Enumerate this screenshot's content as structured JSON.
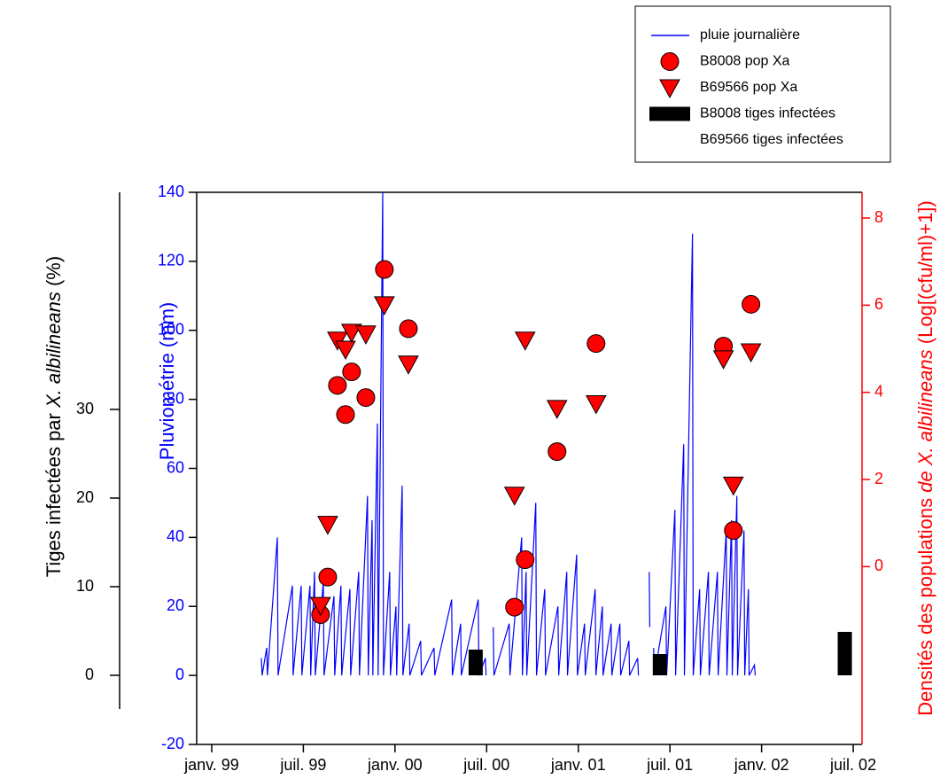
{
  "chart_data": {
    "type": "combo",
    "xlim": [
      1998.918,
      2002.548
    ],
    "xticks": [
      {
        "value": 1999.0,
        "label": "janv. 99"
      },
      {
        "value": 1999.5,
        "label": "juil. 99"
      },
      {
        "value": 2000.0,
        "label": "janv. 00"
      },
      {
        "value": 2000.5,
        "label": "juil. 00"
      },
      {
        "value": 2001.0,
        "label": "janv. 01"
      },
      {
        "value": 2001.5,
        "label": "juil. 01"
      },
      {
        "value": 2002.0,
        "label": "janv. 02"
      },
      {
        "value": 2002.5,
        "label": "juil. 02"
      }
    ],
    "ylim": [
      -20,
      140
    ],
    "yticks": [
      -20,
      0,
      20,
      40,
      60,
      80,
      100,
      120,
      140
    ],
    "y_label": "Pluviométrie (mm)",
    "y2lim": [
      -4.08,
      8.59
    ],
    "y2ticks": [
      0,
      2,
      4,
      6,
      8
    ],
    "y2_label": [
      "Densités des populations ",
      "de X. albilineans",
      " (Log[(cfu/ml)+1])"
    ],
    "y3lim": [
      -3.8,
      54.5
    ],
    "y3ticks": [
      0,
      10,
      20,
      30
    ],
    "y3_label": [
      "Tiges infectées par ",
      "X. albilineans",
      " (%)"
    ],
    "series": [
      {
        "name": "pluie journalière",
        "type": "line",
        "color": "#0000ff",
        "x": [
          1999.271,
          1999.275,
          1999.3,
          1999.304,
          1999.358,
          1999.362,
          1999.44,
          1999.444,
          1999.488,
          1999.492,
          1999.536,
          1999.54,
          1999.561,
          1999.565,
          1999.609,
          1999.613,
          1999.667,
          1999.671,
          1999.705,
          1999.709,
          1999.754,
          1999.758,
          1999.802,
          1999.806,
          1999.85,
          1999.854,
          1999.875,
          1999.879,
          1999.904,
          1999.908,
          1999.933,
          1999.937,
          1999.971,
          1999.975,
          2000.005,
          2000.009,
          2000.039,
          2000.043,
          2000.077,
          2000.081,
          2000.14,
          2000.144,
          2000.213,
          2000.217,
          2000.309,
          2000.313,
          2000.358,
          2000.362,
          2000.454,
          2000.458,
          2000.493,
          2000.497,
          2000.515,
          2000.536,
          2000.54,
          2000.623,
          2000.627,
          2000.691,
          2000.695,
          2000.715,
          2000.719,
          2000.768,
          2000.772,
          2000.817,
          2000.821,
          2000.889,
          2000.893,
          2000.937,
          2000.941,
          2000.991,
          2000.995,
          2001.034,
          2001.038,
          2001.092,
          2001.096,
          2001.131,
          2001.135,
          2001.179,
          2001.183,
          2001.227,
          2001.231,
          2001.276,
          2001.28,
          2001.324,
          2001.328,
          2001.36,
          2001.387,
          2001.39,
          2001.4,
          2001.411,
          2001.415,
          2001.478,
          2001.482,
          2001.527,
          2001.531,
          2001.575,
          2001.579,
          2001.623,
          2001.627,
          2001.662,
          2001.666,
          2001.71,
          2001.714,
          2001.759,
          2001.763,
          2001.807,
          2001.811,
          2001.836,
          2001.84,
          2001.865,
          2001.869,
          2001.904,
          2001.908,
          2001.928,
          2001.932,
          2001.961,
          2001.965
        ],
        "values": [
          5,
          0,
          8,
          0,
          40,
          0,
          26,
          0,
          26,
          0,
          26,
          0,
          30,
          0,
          27,
          0,
          23,
          0,
          26,
          0,
          25,
          0,
          30,
          0,
          52,
          0,
          45,
          0,
          73,
          0,
          140,
          0,
          30,
          0,
          20,
          0,
          55,
          0,
          15,
          0,
          10,
          0,
          8,
          0,
          22,
          0,
          15,
          0,
          22,
          0,
          5,
          0,
          null,
          14,
          0,
          15,
          0,
          40,
          0,
          30,
          0,
          50,
          0,
          25,
          0,
          20,
          0,
          30,
          0,
          35,
          0,
          15,
          0,
          25,
          0,
          20,
          0,
          15,
          0,
          15,
          0,
          10,
          0,
          5,
          0,
          null,
          30,
          14,
          null,
          8,
          0,
          20,
          0,
          48,
          0,
          67,
          0,
          128,
          0,
          25,
          0,
          30,
          0,
          30,
          0,
          42,
          0,
          45,
          0,
          52,
          0,
          42,
          0,
          25,
          0,
          3,
          0
        ]
      },
      {
        "name": "B8008 pop Xa",
        "type": "scatter",
        "marker": "circle",
        "color": "#ff0000",
        "axis": "y2",
        "x": [
          1999.594,
          1999.633,
          1999.686,
          1999.73,
          1999.763,
          1999.841,
          1999.942,
          2000.073,
          2000.652,
          2000.71,
          2000.884,
          2001.097,
          2001.792,
          2001.846,
          2001.942
        ],
        "values": [
          -1.1,
          -0.24,
          4.16,
          3.49,
          4.47,
          3.88,
          6.82,
          5.46,
          -0.93,
          0.16,
          2.64,
          5.12,
          5.06,
          0.83,
          6.02
        ]
      },
      {
        "name": "B69566 pop Xa",
        "type": "scatter",
        "marker": "triangle",
        "color": "#ff0000",
        "axis": "y2",
        "x": [
          1999.594,
          1999.633,
          1999.686,
          1999.73,
          1999.763,
          1999.841,
          1999.942,
          2000.073,
          2000.652,
          2000.71,
          2000.884,
          2001.097,
          2001.792,
          2001.846,
          2001.942
        ],
        "values": [
          -0.89,
          0.97,
          5.2,
          4.99,
          5.38,
          5.34,
          6.01,
          4.65,
          1.64,
          5.2,
          3.63,
          3.74,
          4.77,
          1.87,
          4.93
        ]
      },
      {
        "name": "B8008 tiges infectées",
        "type": "bar",
        "color": "#000000",
        "axis": "y3",
        "x": [
          2000.44,
          2001.445,
          2002.454
        ],
        "values": [
          2.9,
          2.4,
          4.9
        ]
      },
      {
        "name": "B69566 tiges infectées",
        "type": "bar",
        "axis": "y3",
        "x": [],
        "values": []
      }
    ]
  }
}
